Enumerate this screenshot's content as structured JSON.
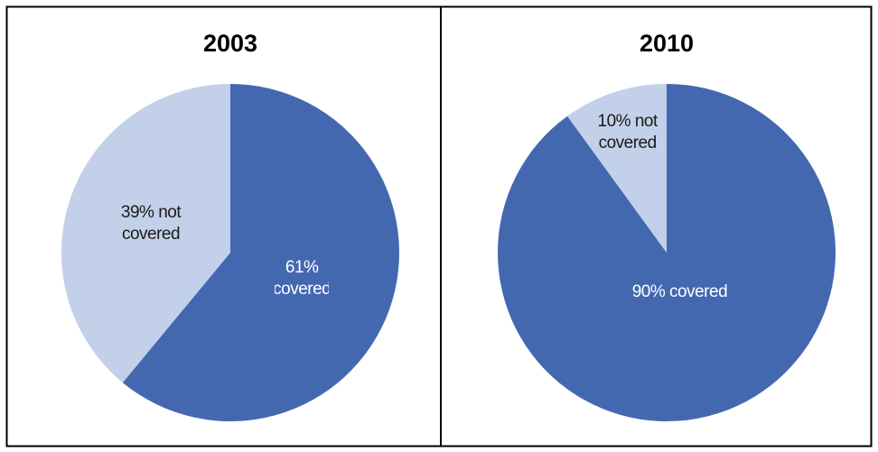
{
  "chart_data": [
    {
      "type": "pie",
      "title": "2003",
      "values": [
        61,
        39
      ],
      "value_labels": [
        "61% covered",
        "39% not covered"
      ],
      "colors": [
        "#4468b0",
        "#c3d0e9"
      ]
    },
    {
      "type": "pie",
      "title": "2010",
      "values": [
        90,
        10
      ],
      "value_labels": [
        "90% covered",
        "10% not covered"
      ],
      "colors": [
        "#4468b0",
        "#c3d0e9"
      ]
    }
  ]
}
